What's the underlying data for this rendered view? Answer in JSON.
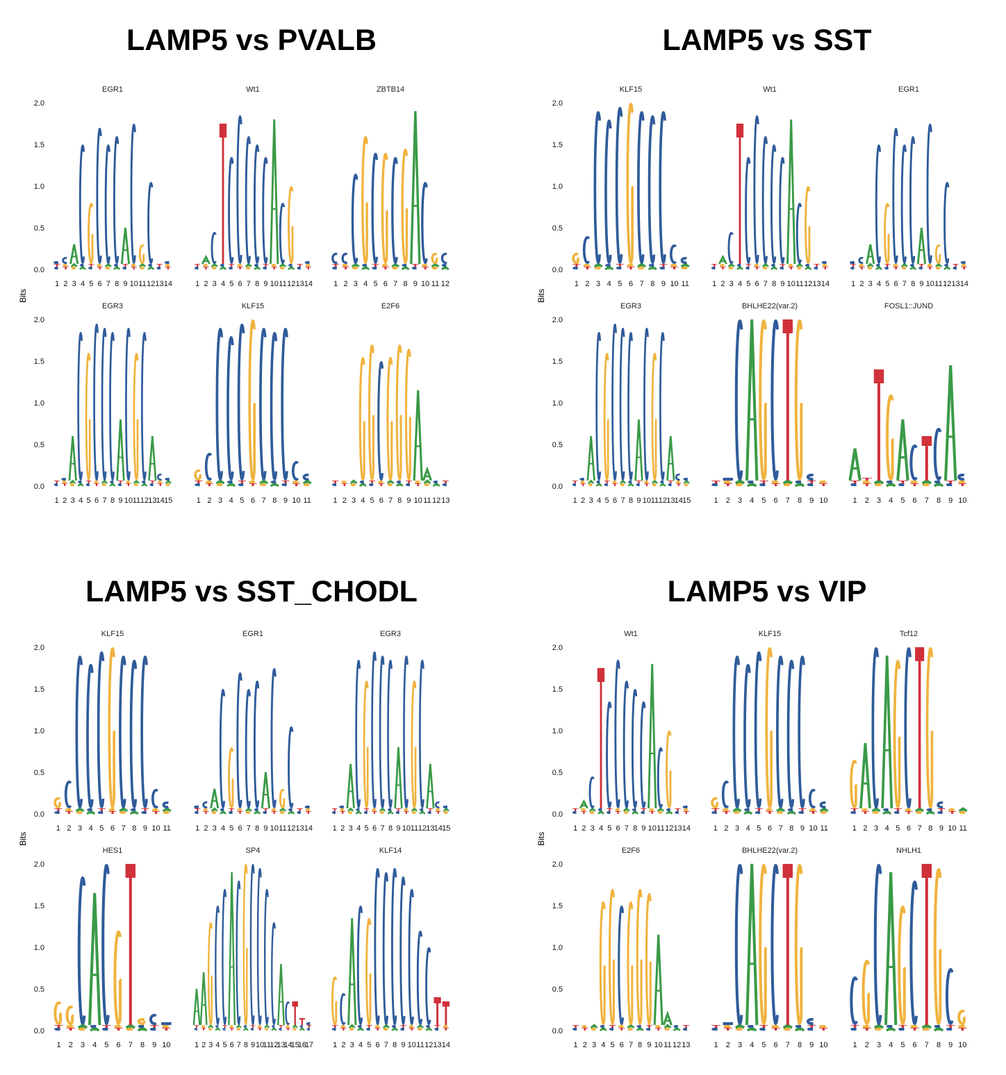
{
  "colors": {
    "A": "#3a9a47",
    "C": "#2f5b9a",
    "G": "#f0b33e",
    "T": "#d0313a"
  },
  "y_axis_label": "Bits",
  "y_ticks": [
    "0.0",
    "0.5",
    "1.0",
    "1.5",
    "2.0"
  ],
  "panels": [
    {
      "title": "LAMP5 vs PVALB",
      "motifs": [
        {
          "name": "EGR1",
          "length": 14,
          "seq": "CCACGCCCACGCAC",
          "heights": [
            0.1,
            0.15,
            0.3,
            1.5,
            0.8,
            1.7,
            1.5,
            1.6,
            0.5,
            1.75,
            0.3,
            1.05,
            0.05,
            0.1
          ]
        },
        {
          "name": "Wt1",
          "length": 14,
          "seq": "CACTCCCCCACGCC",
          "heights": [
            0.05,
            0.15,
            0.45,
            1.75,
            1.35,
            1.85,
            1.6,
            1.5,
            1.35,
            1.8,
            0.8,
            1.0,
            0.05,
            0.1
          ]
        },
        {
          "name": "ZBTB14",
          "length": 12,
          "seq": "CCCGCGCGACGC",
          "heights": [
            0.2,
            0.2,
            1.15,
            1.6,
            1.4,
            1.4,
            1.35,
            1.45,
            1.9,
            1.05,
            0.2,
            0.2
          ]
        },
        {
          "name": "EGR3",
          "length": 15,
          "seq": "CCACGCCCACGCACC",
          "heights": [
            0.05,
            0.1,
            0.6,
            1.85,
            1.6,
            1.95,
            1.9,
            1.85,
            0.8,
            1.9,
            1.6,
            1.85,
            0.6,
            0.15,
            0.1
          ]
        },
        {
          "name": "KLF15",
          "length": 11,
          "seq": "GCCCCGCCCCC",
          "heights": [
            0.2,
            0.4,
            1.9,
            1.8,
            1.95,
            2.0,
            1.9,
            1.85,
            1.9,
            0.3,
            0.15
          ]
        },
        {
          "name": "E2F6",
          "length": 13,
          "seq": "CGCGGCGGGAAGC",
          "heights": [
            0.05,
            0.05,
            0.05,
            1.55,
            1.7,
            1.5,
            1.55,
            1.7,
            1.65,
            1.15,
            0.2,
            0.05,
            0.05
          ]
        }
      ]
    },
    {
      "title": "LAMP5 vs SST",
      "motifs": [
        {
          "name": "KLF15",
          "length": 11,
          "seq": "GCCCCGCCCCC",
          "heights": [
            0.2,
            0.4,
            1.9,
            1.8,
            1.95,
            2.0,
            1.9,
            1.85,
            1.9,
            0.3,
            0.15
          ]
        },
        {
          "name": "Wt1",
          "length": 14,
          "seq": "CACTCCCCCACGCC",
          "heights": [
            0.05,
            0.15,
            0.45,
            1.75,
            1.35,
            1.85,
            1.6,
            1.5,
            1.35,
            1.8,
            0.8,
            1.0,
            0.05,
            0.1
          ]
        },
        {
          "name": "EGR1",
          "length": 14,
          "seq": "CCACGCCCACGCAC",
          "heights": [
            0.1,
            0.15,
            0.3,
            1.5,
            0.8,
            1.7,
            1.5,
            1.6,
            0.5,
            1.75,
            0.3,
            1.05,
            0.05,
            0.1
          ]
        },
        {
          "name": "EGR3",
          "length": 15,
          "seq": "CCACGCCCACGCACC",
          "heights": [
            0.05,
            0.1,
            0.6,
            1.85,
            1.6,
            1.95,
            1.9,
            1.85,
            0.8,
            1.9,
            1.6,
            1.85,
            0.6,
            0.15,
            0.1
          ]
        },
        {
          "name": "BHLHE22(var.2)",
          "length": 10,
          "seq": "GCCAGCTGCC",
          "heights": [
            0.0,
            0.1,
            2.0,
            2.0,
            2.0,
            2.0,
            2.0,
            2.0,
            0.15,
            0.0
          ]
        },
        {
          "name": "FOSL1::JUND",
          "length": 10,
          "seq": "ATTGACTCAC",
          "heights": [
            0.45,
            0.1,
            1.4,
            1.1,
            0.8,
            0.5,
            0.6,
            0.7,
            1.45,
            0.15
          ]
        }
      ]
    },
    {
      "title": "LAMP5 vs SST_CHODL",
      "motifs": [
        {
          "name": "KLF15",
          "length": 11,
          "seq": "GCCCCGCCCCC",
          "heights": [
            0.2,
            0.4,
            1.9,
            1.8,
            1.95,
            2.0,
            1.9,
            1.85,
            1.9,
            0.3,
            0.15
          ]
        },
        {
          "name": "EGR1",
          "length": 14,
          "seq": "CCACGCCCACGCAC",
          "heights": [
            0.1,
            0.15,
            0.3,
            1.5,
            0.8,
            1.7,
            1.5,
            1.6,
            0.5,
            1.75,
            0.3,
            1.05,
            0.05,
            0.1
          ]
        },
        {
          "name": "EGR3",
          "length": 15,
          "seq": "CCACGCCCACGCACC",
          "heights": [
            0.05,
            0.1,
            0.6,
            1.85,
            1.6,
            1.95,
            1.9,
            1.85,
            0.8,
            1.9,
            1.6,
            1.85,
            0.6,
            0.15,
            0.1
          ]
        },
        {
          "name": "HES1",
          "length": 10,
          "seq": "GGCACGTGCC",
          "heights": [
            0.35,
            0.3,
            1.85,
            1.65,
            2.0,
            1.2,
            2.0,
            0.15,
            0.2,
            0.1
          ]
        },
        {
          "name": "SP4",
          "length": 17,
          "seq": "AAGCCACGCCCCACTTC",
          "heights": [
            0.5,
            0.7,
            1.3,
            1.5,
            1.7,
            1.9,
            1.8,
            2.0,
            2.0,
            1.95,
            1.7,
            1.3,
            0.8,
            0.35,
            0.35,
            0.15,
            0.1
          ]
        },
        {
          "name": "KLF14",
          "length": 14,
          "seq": "GCACGCCCCCCCTT",
          "heights": [
            0.65,
            0.45,
            1.35,
            1.5,
            1.35,
            1.95,
            1.9,
            1.95,
            1.85,
            1.7,
            1.2,
            1.0,
            0.4,
            0.35
          ]
        }
      ]
    },
    {
      "title": "LAMP5 vs VIP",
      "motifs": [
        {
          "name": "Wt1",
          "length": 14,
          "seq": "CACTCCCCCACGCC",
          "heights": [
            0.05,
            0.15,
            0.45,
            1.75,
            1.35,
            1.85,
            1.6,
            1.5,
            1.35,
            1.8,
            0.8,
            1.0,
            0.05,
            0.1
          ]
        },
        {
          "name": "KLF15",
          "length": 11,
          "seq": "GCCCCGCCCCC",
          "heights": [
            0.2,
            0.4,
            1.9,
            1.8,
            1.95,
            2.0,
            1.9,
            1.85,
            1.9,
            0.3,
            0.15
          ]
        },
        {
          "name": "Tcf12",
          "length": 11,
          "seq": "GACAGCTGCCC",
          "heights": [
            0.65,
            0.85,
            2.0,
            1.9,
            1.85,
            2.0,
            2.0,
            2.0,
            0.15,
            0.0,
            0.05
          ]
        },
        {
          "name": "E2F6",
          "length": 13,
          "seq": "CGCGGCGGGAAGC",
          "heights": [
            0.05,
            0.05,
            0.05,
            1.55,
            1.7,
            1.5,
            1.55,
            1.7,
            1.65,
            1.15,
            0.2,
            0.05,
            0.05
          ]
        },
        {
          "name": "BHLHE22(var.2)",
          "length": 10,
          "seq": "GCCAGCTGCC",
          "heights": [
            0.0,
            0.1,
            2.0,
            2.0,
            2.0,
            2.0,
            2.0,
            2.0,
            0.15,
            0.0
          ]
        },
        {
          "name": "NHLH1",
          "length": 10,
          "seq": "CGCAGCTGCG",
          "heights": [
            0.65,
            0.85,
            2.0,
            1.9,
            1.5,
            1.8,
            2.0,
            1.95,
            0.75,
            0.25
          ]
        }
      ]
    }
  ],
  "chart_data": {
    "type": "sequence-logo",
    "ylabel": "Bits",
    "ylim": [
      0,
      2.0
    ],
    "panels": [
      {
        "title": "LAMP5 vs PVALB",
        "motifs": [
          "EGR1",
          "Wt1",
          "ZBTB14",
          "EGR3",
          "KLF15",
          "E2F6"
        ]
      },
      {
        "title": "LAMP5 vs SST",
        "motifs": [
          "KLF15",
          "Wt1",
          "EGR1",
          "EGR3",
          "BHLHE22(var.2)",
          "FOSL1::JUND"
        ]
      },
      {
        "title": "LAMP5 vs SST_CHODL",
        "motifs": [
          "KLF15",
          "EGR1",
          "EGR3",
          "HES1",
          "SP4",
          "KLF14"
        ]
      },
      {
        "title": "LAMP5 vs VIP",
        "motifs": [
          "Wt1",
          "KLF15",
          "Tcf12",
          "E2F6",
          "BHLHE22(var.2)",
          "NHLH1"
        ]
      }
    ]
  }
}
